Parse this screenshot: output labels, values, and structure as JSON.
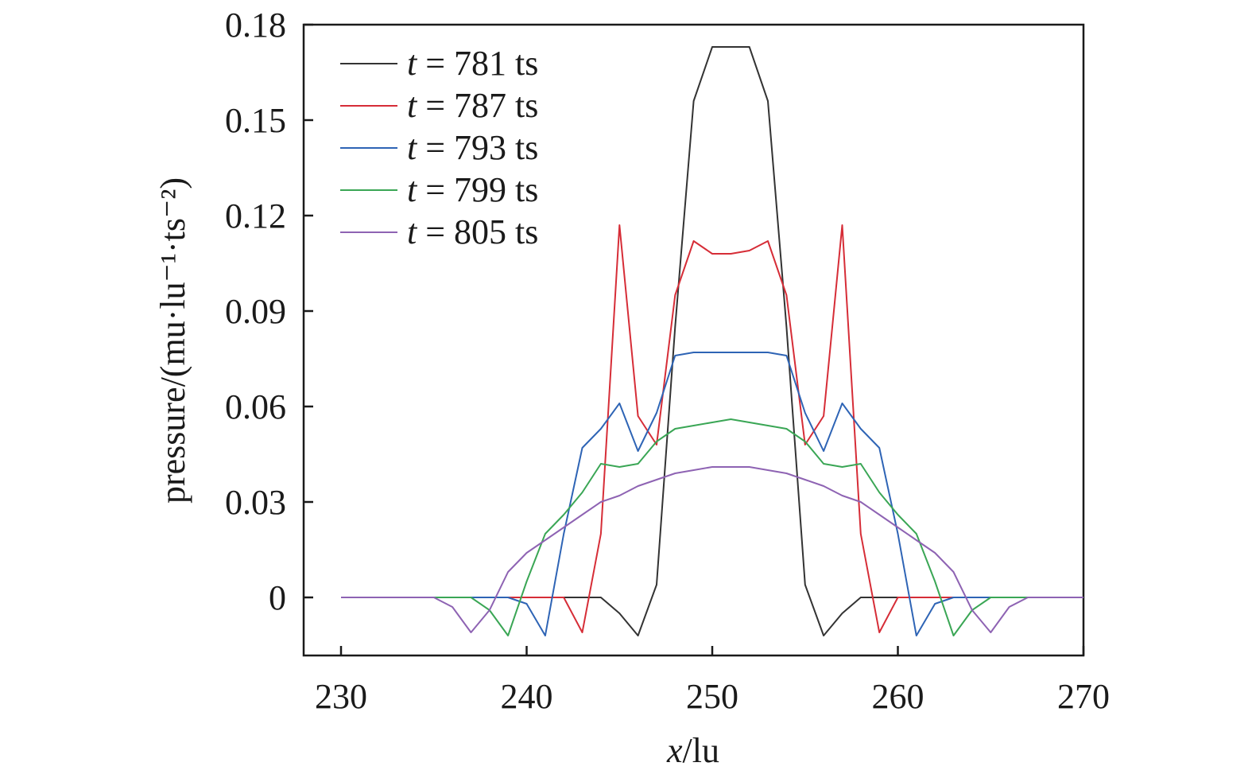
{
  "chart_data": {
    "type": "line",
    "xlabel": "x/lu",
    "ylabel": "pressure/(mu·lu⁻¹·ts⁻²)",
    "xlim": [
      228,
      270
    ],
    "ylim": [
      -0.018,
      0.18
    ],
    "xticks": [
      230,
      240,
      250,
      260,
      270
    ],
    "yticks": [
      0,
      0.03,
      0.06,
      0.09,
      0.12,
      0.15,
      0.18
    ],
    "xtick_labels": [
      "230",
      "240",
      "250",
      "260",
      "270"
    ],
    "ytick_labels": [
      "0",
      "0.03",
      "0.06",
      "0.09",
      "0.12",
      "0.15",
      "0.18"
    ],
    "legend_position": "top-left",
    "grid": false,
    "series": [
      {
        "name": "t = 781 ts",
        "legend_var": "t",
        "legend_rest": " = 781 ts",
        "color": "#333333",
        "x": [
          230,
          231,
          232,
          233,
          234,
          235,
          236,
          237,
          238,
          239,
          240,
          241,
          242,
          243,
          244,
          245,
          246,
          247,
          248,
          249,
          250,
          251,
          252,
          253,
          254,
          255,
          256,
          257,
          258,
          259,
          260,
          261,
          262,
          263,
          264,
          265,
          266,
          267,
          268,
          269,
          270
        ],
        "y": [
          0,
          0,
          0,
          0,
          0,
          0,
          0,
          0,
          0,
          0,
          0,
          0,
          0,
          0,
          0,
          -0.005,
          -0.012,
          0.004,
          0.085,
          0.156,
          0.173,
          0.173,
          0.173,
          0.156,
          0.085,
          0.004,
          -0.012,
          -0.005,
          0,
          0,
          0,
          0,
          0,
          0,
          0,
          0,
          0,
          0,
          0,
          0,
          0
        ]
      },
      {
        "name": "t = 787 ts",
        "legend_var": "t",
        "legend_rest": " = 787 ts",
        "color": "#d62d37",
        "x": [
          230,
          231,
          232,
          233,
          234,
          235,
          236,
          237,
          238,
          239,
          240,
          241,
          242,
          243,
          244,
          245,
          246,
          247,
          248,
          249,
          250,
          251,
          252,
          253,
          254,
          255,
          256,
          257,
          258,
          259,
          260,
          261,
          262,
          263,
          264,
          265,
          266,
          267,
          268,
          269,
          270
        ],
        "y": [
          0,
          0,
          0,
          0,
          0,
          0,
          0,
          0,
          0,
          0,
          0,
          0,
          0,
          -0.011,
          0.02,
          0.117,
          0.057,
          0.048,
          0.095,
          0.112,
          0.108,
          0.108,
          0.109,
          0.112,
          0.095,
          0.048,
          0.057,
          0.117,
          0.02,
          -0.011,
          0,
          0,
          0,
          0,
          0,
          0,
          0,
          0,
          0,
          0,
          0
        ]
      },
      {
        "name": "t = 793 ts",
        "legend_var": "t",
        "legend_rest": " = 793 ts",
        "color": "#2e64b5",
        "x": [
          230,
          231,
          232,
          233,
          234,
          235,
          236,
          237,
          238,
          239,
          240,
          241,
          242,
          243,
          244,
          245,
          246,
          247,
          248,
          249,
          250,
          251,
          252,
          253,
          254,
          255,
          256,
          257,
          258,
          259,
          260,
          261,
          262,
          263,
          264,
          265,
          266,
          267,
          268,
          269,
          270
        ],
        "y": [
          0,
          0,
          0,
          0,
          0,
          0,
          0,
          0,
          0,
          0,
          -0.002,
          -0.012,
          0.02,
          0.047,
          0.053,
          0.061,
          0.046,
          0.058,
          0.076,
          0.077,
          0.077,
          0.077,
          0.077,
          0.077,
          0.076,
          0.058,
          0.046,
          0.061,
          0.053,
          0.047,
          0.02,
          -0.012,
          -0.002,
          0,
          0,
          0,
          0,
          0,
          0,
          0,
          0
        ]
      },
      {
        "name": "t = 799 ts",
        "legend_var": "t",
        "legend_rest": " = 799 ts",
        "color": "#3aa655",
        "x": [
          230,
          231,
          232,
          233,
          234,
          235,
          236,
          237,
          238,
          239,
          240,
          241,
          242,
          243,
          244,
          245,
          246,
          247,
          248,
          249,
          250,
          251,
          252,
          253,
          254,
          255,
          256,
          257,
          258,
          259,
          260,
          261,
          262,
          263,
          264,
          265,
          266,
          267,
          268,
          269,
          270
        ],
        "y": [
          0,
          0,
          0,
          0,
          0,
          0,
          0,
          0,
          -0.004,
          -0.012,
          0.005,
          0.02,
          0.026,
          0.033,
          0.042,
          0.041,
          0.042,
          0.049,
          0.053,
          0.054,
          0.055,
          0.056,
          0.055,
          0.054,
          0.053,
          0.049,
          0.042,
          0.041,
          0.042,
          0.033,
          0.026,
          0.02,
          0.005,
          -0.012,
          -0.004,
          0,
          0,
          0,
          0,
          0,
          0
        ]
      },
      {
        "name": "t = 805 ts",
        "legend_var": "t",
        "legend_rest": " = 805 ts",
        "color": "#8e63b3",
        "x": [
          230,
          231,
          232,
          233,
          234,
          235,
          236,
          237,
          238,
          239,
          240,
          241,
          242,
          243,
          244,
          245,
          246,
          247,
          248,
          249,
          250,
          251,
          252,
          253,
          254,
          255,
          256,
          257,
          258,
          259,
          260,
          261,
          262,
          263,
          264,
          265,
          266,
          267,
          268,
          269,
          270
        ],
        "y": [
          0,
          0,
          0,
          0,
          0,
          0,
          -0.003,
          -0.011,
          -0.004,
          0.008,
          0.014,
          0.018,
          0.022,
          0.026,
          0.03,
          0.032,
          0.035,
          0.037,
          0.039,
          0.04,
          0.041,
          0.041,
          0.041,
          0.04,
          0.039,
          0.037,
          0.035,
          0.032,
          0.03,
          0.026,
          0.022,
          0.018,
          0.014,
          0.008,
          -0.004,
          -0.011,
          -0.003,
          0,
          0,
          0,
          0
        ]
      }
    ]
  }
}
